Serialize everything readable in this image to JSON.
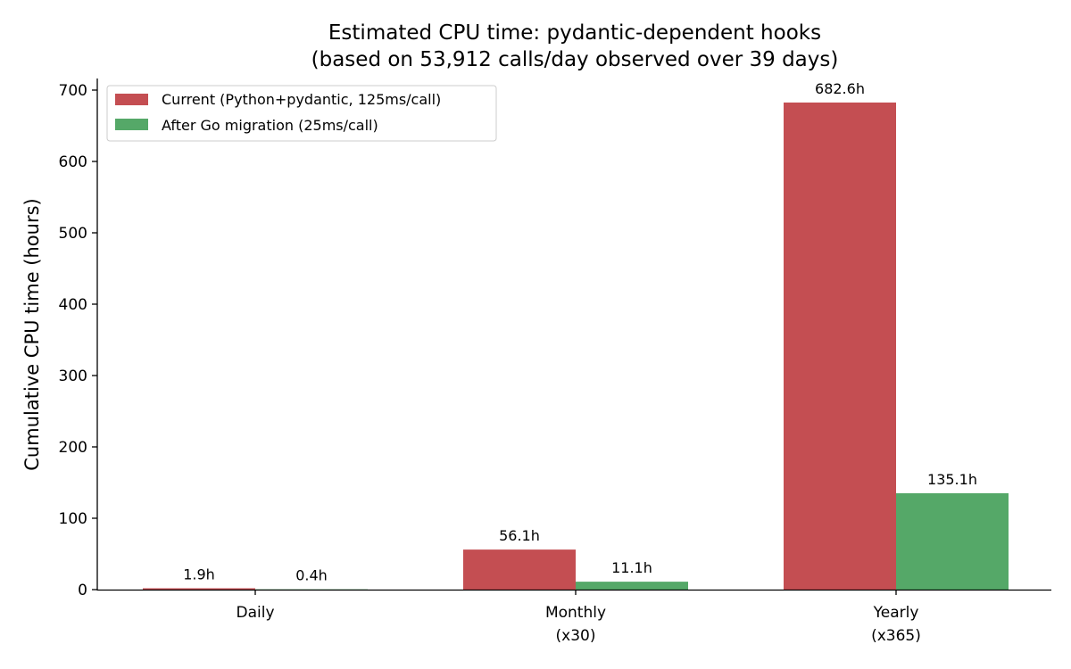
{
  "chart_data": {
    "type": "bar",
    "title": "Estimated CPU time: pydantic-dependent hooks",
    "subtitle": "(based on 53,912 calls/day observed over 39 days)",
    "xlabel": "",
    "ylabel": "Cumulative CPU time (hours)",
    "ylim": [
      0,
      720
    ],
    "yticks": [
      0,
      100,
      200,
      300,
      400,
      500,
      600,
      700
    ],
    "grid": false,
    "legend_position": "top-left",
    "categories": [
      {
        "line1": "Daily",
        "line2": ""
      },
      {
        "line1": "Monthly",
        "line2": "(x30)"
      },
      {
        "line1": "Yearly",
        "line2": "(x365)"
      }
    ],
    "series": [
      {
        "name": "Current (Python+pydantic, 125ms/call)",
        "color": "#c44e52",
        "values": [
          1.9,
          56.1,
          682.6
        ],
        "labels": [
          "1.9h",
          "56.1h",
          "682.6h"
        ]
      },
      {
        "name": "After Go migration (25ms/call)",
        "color": "#55a868",
        "values": [
          0.4,
          11.1,
          135.1
        ],
        "labels": [
          "0.4h",
          "11.1h",
          "135.1h"
        ]
      }
    ]
  }
}
